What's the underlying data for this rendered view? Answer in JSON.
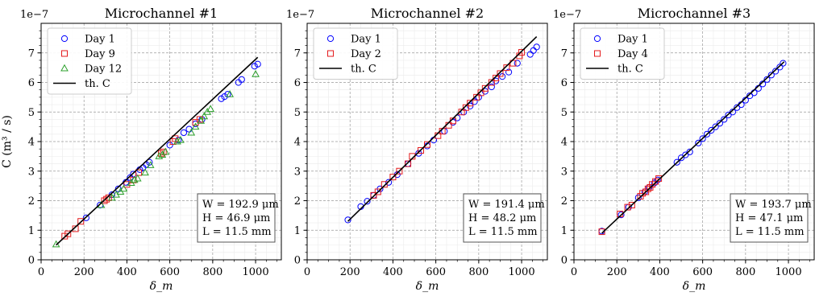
{
  "chart_data": [
    {
      "type": "scatter",
      "title": "Microchannel #1",
      "xlabel": "δ_m",
      "ylabel": "C (m³ / s)",
      "y_multiplier": "1e−7",
      "xlim": [
        0,
        1120
      ],
      "ylim": [
        0,
        8
      ],
      "xticks": [
        0,
        200,
        400,
        600,
        800,
        1000
      ],
      "yticks": [
        0,
        1,
        2,
        3,
        4,
        5,
        6,
        7
      ],
      "grid": true,
      "legend_placement": "top-left",
      "annotation": [
        "W = 192.9 μm",
        "H = 46.9 μm",
        "L = 11.5 mm"
      ],
      "series": [
        {
          "name": "Day 1",
          "marker": "circle",
          "color": "#0000ff",
          "x": [
            210,
            275,
            330,
            360,
            395,
            415,
            430,
            460,
            475,
            490,
            505,
            600,
            640,
            665,
            690,
            720,
            750,
            840,
            855,
            870,
            920,
            935,
            995,
            1010
          ],
          "y": [
            1.42,
            1.85,
            2.2,
            2.4,
            2.62,
            2.78,
            2.9,
            3.05,
            3.12,
            3.22,
            3.3,
            3.88,
            4.05,
            4.3,
            4.42,
            4.6,
            4.75,
            5.45,
            5.52,
            5.6,
            6.0,
            6.1,
            6.55,
            6.62
          ]
        },
        {
          "name": "Day 9",
          "marker": "square",
          "color": "#e41a1c",
          "x": [
            110,
            125,
            160,
            185,
            295,
            305,
            315,
            400,
            430,
            455,
            560,
            570,
            615,
            625,
            720,
            740
          ],
          "y": [
            0.8,
            0.88,
            1.05,
            1.3,
            2.0,
            2.05,
            2.1,
            2.55,
            2.7,
            2.95,
            3.6,
            3.65,
            4.0,
            4.1,
            4.65,
            4.75
          ]
        },
        {
          "name": "Day 12",
          "marker": "triangle",
          "color": "#2ca02c",
          "x": [
            70,
            280,
            330,
            350,
            370,
            385,
            420,
            435,
            450,
            485,
            510,
            550,
            565,
            580,
            635,
            650,
            700,
            720,
            745,
            760,
            775,
            790,
            880,
            1000
          ],
          "y": [
            0.52,
            1.85,
            2.1,
            2.2,
            2.3,
            2.4,
            2.6,
            2.7,
            2.75,
            2.95,
            3.2,
            3.5,
            3.55,
            3.65,
            4.0,
            4.05,
            4.3,
            4.5,
            4.7,
            4.85,
            5.0,
            5.1,
            5.6,
            6.28
          ]
        },
        {
          "name": "th. C",
          "marker": "line",
          "color": "#000000",
          "x": [
            70,
            1010
          ],
          "y": [
            0.5,
            6.85
          ]
        }
      ]
    },
    {
      "type": "scatter",
      "title": "Microchannel #2",
      "xlabel": "δ_m",
      "ylabel": "",
      "y_multiplier": "1e−7",
      "xlim": [
        0,
        1120
      ],
      "ylim": [
        0,
        8
      ],
      "xticks": [
        0,
        200,
        400,
        600,
        800,
        1000
      ],
      "yticks": [
        0,
        1,
        2,
        3,
        4,
        5,
        6,
        7
      ],
      "grid": true,
      "legend_placement": "top-left",
      "annotation": [
        "W = 191.4 μm",
        "H = 48.2 μm",
        "L = 11.5 mm"
      ],
      "series": [
        {
          "name": "Day 1",
          "marker": "circle",
          "color": "#0000ff",
          "x": [
            190,
            250,
            280,
            310,
            340,
            380,
            420,
            470,
            520,
            560,
            590,
            640,
            680,
            700,
            730,
            760,
            780,
            800,
            830,
            860,
            880,
            910,
            940,
            980,
            1040,
            1055,
            1070
          ],
          "y": [
            1.35,
            1.8,
            1.98,
            2.18,
            2.4,
            2.62,
            2.88,
            3.25,
            3.6,
            3.85,
            4.05,
            4.35,
            4.65,
            4.8,
            5.0,
            5.2,
            5.35,
            5.5,
            5.7,
            5.85,
            6.05,
            6.2,
            6.35,
            6.65,
            6.95,
            7.08,
            7.2
          ]
        },
        {
          "name": "Day 2",
          "marker": "square",
          "color": "#e41a1c",
          "x": [
            310,
            330,
            360,
            400,
            430,
            470,
            490,
            530,
            560,
            610,
            630,
            660,
            680,
            720,
            740,
            760,
            790,
            810,
            830,
            860,
            880,
            900,
            930,
            960,
            990,
            1000
          ],
          "y": [
            2.18,
            2.3,
            2.55,
            2.8,
            3.0,
            3.25,
            3.5,
            3.7,
            3.9,
            4.2,
            4.35,
            4.55,
            4.7,
            5.0,
            5.15,
            5.3,
            5.5,
            5.65,
            5.8,
            6.0,
            6.15,
            6.3,
            6.5,
            6.65,
            6.9,
            7.02
          ]
        },
        {
          "name": "th. C",
          "marker": "line",
          "color": "#000000",
          "x": [
            190,
            1070
          ],
          "y": [
            1.3,
            7.55
          ]
        }
      ]
    },
    {
      "type": "scatter",
      "title": "Microchannel #3",
      "xlabel": "δ_m",
      "ylabel": "",
      "y_multiplier": "1e−7",
      "xlim": [
        0,
        1120
      ],
      "ylim": [
        0,
        8
      ],
      "xticks": [
        0,
        200,
        400,
        600,
        800,
        1000
      ],
      "yticks": [
        0,
        1,
        2,
        3,
        4,
        5,
        6,
        7
      ],
      "grid": true,
      "legend_placement": "top-left",
      "annotation": [
        "W = 193.7 μm",
        "H = 47.1 μm",
        "L = 11.5 mm"
      ],
      "series": [
        {
          "name": "Day 1",
          "marker": "circle",
          "color": "#0000ff",
          "x": [
            130,
            220,
            255,
            300,
            330,
            350,
            375,
            390,
            480,
            500,
            520,
            540,
            580,
            600,
            620,
            640,
            660,
            680,
            700,
            720,
            740,
            760,
            780,
            800,
            820,
            840,
            860,
            880,
            900,
            920,
            940,
            960,
            975
          ],
          "y": [
            0.97,
            1.52,
            1.78,
            2.1,
            2.3,
            2.45,
            2.6,
            2.7,
            3.3,
            3.45,
            3.55,
            3.65,
            3.95,
            4.1,
            4.25,
            4.38,
            4.5,
            4.62,
            4.75,
            4.9,
            5.0,
            5.15,
            5.25,
            5.4,
            5.55,
            5.65,
            5.8,
            5.95,
            6.1,
            6.25,
            6.38,
            6.52,
            6.65
          ]
        },
        {
          "name": "Day 4",
          "marker": "square",
          "color": "#e41a1c",
          "x": [
            130,
            215,
            250,
            270,
            310,
            320,
            335,
            345,
            355,
            365,
            380,
            395
          ],
          "y": [
            0.95,
            1.55,
            1.78,
            1.85,
            2.15,
            2.25,
            2.3,
            2.4,
            2.45,
            2.55,
            2.65,
            2.75
          ]
        },
        {
          "name": "th. C",
          "marker": "line",
          "color": "#000000",
          "x": [
            130,
            980
          ],
          "y": [
            0.9,
            6.7
          ]
        }
      ]
    }
  ]
}
